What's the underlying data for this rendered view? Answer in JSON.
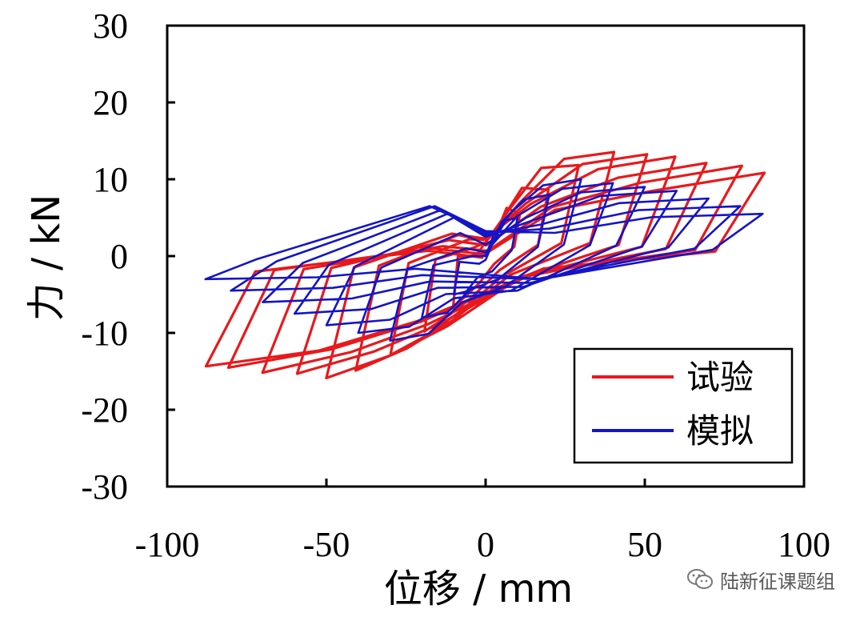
{
  "chart_data": {
    "type": "line",
    "xlabel": "位移 / mm",
    "ylabel": "力 / kN",
    "xlim": [
      -100,
      100
    ],
    "ylim": [
      -30,
      30
    ],
    "xticks": [
      -100,
      -50,
      0,
      50,
      100
    ],
    "yticks": [
      -30,
      -20,
      -10,
      0,
      10,
      20,
      30
    ],
    "grid": false,
    "legend_position": "bottom-right",
    "series": [
      {
        "name": "试验",
        "color": "#e8191c",
        "cycles": [
          {
            "dmax": 10,
            "dmin": -10,
            "fmax": 6,
            "fmin": -6,
            "rpos": -1,
            "rneg": 1
          },
          {
            "dmax": 20,
            "dmin": -20,
            "fmax": 9,
            "fmin": -9,
            "rpos": -2,
            "rneg": 2
          },
          {
            "dmax": 30,
            "dmin": -30,
            "fmax": 12,
            "fmin": -12,
            "rpos": -3,
            "rneg": 3
          },
          {
            "dmax": 40,
            "dmin": -40,
            "fmax": 13.5,
            "fmin": -14,
            "rpos": -3,
            "rneg": 3.5
          },
          {
            "dmax": 50,
            "dmin": -50,
            "fmax": 13,
            "fmin": -15,
            "rpos": -3.5,
            "rneg": 3.5
          },
          {
            "dmax": 60,
            "dmin": -60,
            "fmax": 12.5,
            "fmin": -14.5,
            "rpos": -3.5,
            "rneg": 2.5
          },
          {
            "dmax": 70,
            "dmin": -70,
            "fmax": 11.5,
            "fmin": -14.5,
            "rpos": -3.5,
            "rneg": 1.5
          },
          {
            "dmax": 80,
            "dmin": -80,
            "fmax": 11,
            "fmin": -14,
            "rpos": -3,
            "rneg": 1
          },
          {
            "dmax": 87,
            "dmin": -88,
            "fmax": 10,
            "fmin": -14,
            "rpos": -2.5,
            "rneg": 0.5
          }
        ]
      },
      {
        "name": "模拟",
        "color": "#1414c8",
        "cycles": [
          {
            "dmax": 10,
            "dmin": -10,
            "fmax": 5,
            "fmin": -5,
            "rpos": -2,
            "rneg": -1
          },
          {
            "dmax": 20,
            "dmin": -20,
            "fmax": 8,
            "fmin": -8,
            "rpos": -3,
            "rneg": 0
          },
          {
            "dmax": 30,
            "dmin": -30,
            "fmax": 10,
            "fmin": -11,
            "rpos": -4,
            "rneg": 1
          },
          {
            "dmax": 40,
            "dmin": -40,
            "fmax": 9.5,
            "fmin": -10,
            "rpos": -4.5,
            "rneg": 3
          },
          {
            "dmax": 50,
            "dmin": -50,
            "fmax": 9,
            "fmin": -9,
            "rpos": -4.5,
            "rneg": 5
          },
          {
            "dmax": 60,
            "dmin": -60,
            "fmax": 8.5,
            "fmin": -7.5,
            "rpos": -4,
            "rneg": 5.5
          },
          {
            "dmax": 70,
            "dmin": -70,
            "fmax": 7.5,
            "fmin": -6,
            "rpos": -3.5,
            "rneg": 6
          },
          {
            "dmax": 80,
            "dmin": -80,
            "fmax": 6.5,
            "fmin": -4.5,
            "rpos": -3,
            "rneg": 6.5
          },
          {
            "dmax": 87,
            "dmin": -88,
            "fmax": 5.5,
            "fmin": -3,
            "rpos": -3,
            "rneg": 6.5
          }
        ]
      }
    ]
  },
  "watermark": {
    "text": "陆新征课题组",
    "icon": "wechat-icon"
  }
}
